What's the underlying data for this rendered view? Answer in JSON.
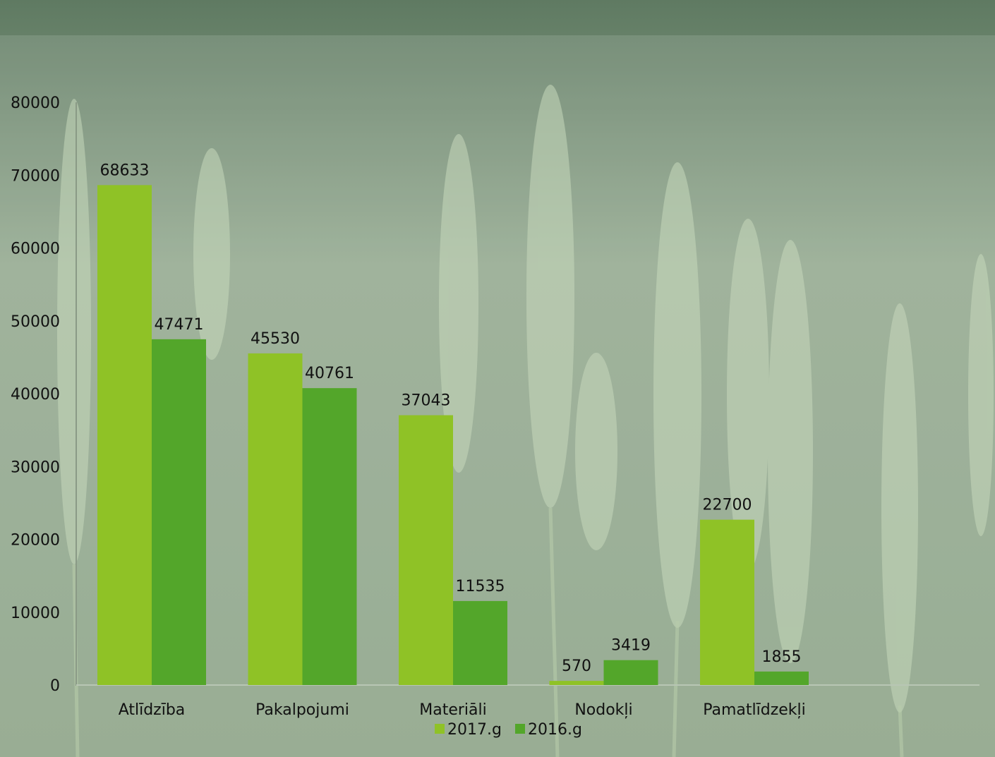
{
  "chart_data": {
    "type": "bar",
    "categories": [
      "Atlīdzība",
      "Pakalpojumi",
      "Materiāli",
      "Nodokļi",
      "Pamatlīdzekļi"
    ],
    "series": [
      {
        "name": "2017.g",
        "values": [
          68633,
          45530,
          37043,
          570,
          22700
        ],
        "color": "#8fc226"
      },
      {
        "name": "2016.g",
        "values": [
          47471,
          40761,
          11535,
          3419,
          1855
        ],
        "color": "#53a62a"
      }
    ],
    "ylim": [
      0,
      80000
    ],
    "yticks": [
      "0",
      "10000",
      "20000",
      "30000",
      "40000",
      "50000",
      "60000",
      "70000",
      "80000"
    ],
    "title": "",
    "xlabel": "",
    "ylabel": "",
    "grid": false,
    "legend_position": "bottom"
  }
}
